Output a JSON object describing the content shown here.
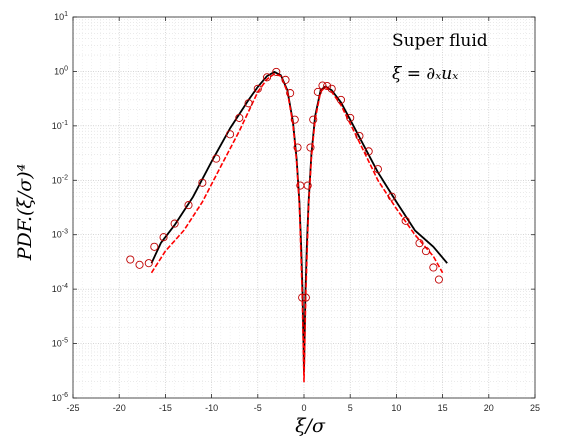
{
  "chart_data": {
    "type": "line",
    "xlabel": "ξ/σ",
    "ylabel": "PDF.(ξ/σ)⁴",
    "xlim": [
      -25,
      25
    ],
    "ylim": [
      1e-06,
      10
    ],
    "yscale": "log",
    "grid": true,
    "grid_minor": true,
    "x_ticks": [
      -25,
      -20,
      -15,
      -10,
      -5,
      0,
      5,
      10,
      15,
      20,
      25
    ],
    "x_tick_labels": [
      "-25",
      "-20",
      "-15",
      "-10",
      "-5",
      "0",
      "5",
      "10",
      "15",
      "20",
      "25"
    ],
    "y_ticks": [
      1e-06,
      1e-05,
      0.0001,
      0.001,
      0.01,
      0.1,
      1,
      10
    ],
    "y_tick_labels": [
      {
        "base": "10",
        "exp": "-6"
      },
      {
        "base": "10",
        "exp": "-5"
      },
      {
        "base": "10",
        "exp": "-4"
      },
      {
        "base": "10",
        "exp": "-3"
      },
      {
        "base": "10",
        "exp": "-2"
      },
      {
        "base": "10",
        "exp": "-1"
      },
      {
        "base": "10",
        "exp": "0"
      },
      {
        "base": "10",
        "exp": "1"
      }
    ],
    "annotations": [
      "Super  fluid",
      "ξ = ∂ₓuₓ"
    ],
    "series": [
      {
        "style": "line",
        "color": "#000000",
        "x": [
          -16.5,
          -15.5,
          -14,
          -12,
          -10,
          -8,
          -6,
          -5,
          -4,
          -3.2,
          -2.5,
          -1.8,
          -1.2,
          -0.8,
          -0.5,
          -0.3,
          -0.15,
          0,
          0.15,
          0.3,
          0.5,
          0.8,
          1.2,
          1.8,
          2.3,
          3,
          4,
          5,
          6,
          8,
          10,
          12,
          14,
          15.5
        ],
        "y": [
          0.0003,
          0.0007,
          0.0015,
          0.005,
          0.022,
          0.09,
          0.3,
          0.52,
          0.82,
          0.98,
          0.85,
          0.45,
          0.12,
          0.025,
          0.004,
          0.0006,
          8e-05,
          3e-06,
          8e-05,
          0.0006,
          0.004,
          0.03,
          0.15,
          0.45,
          0.53,
          0.45,
          0.27,
          0.13,
          0.062,
          0.014,
          0.004,
          0.0012,
          0.0006,
          0.0003
        ]
      },
      {
        "style": "dashed",
        "color": "#ff0000",
        "x": [
          -16.5,
          -15,
          -13,
          -11,
          -9,
          -7,
          -5,
          -4,
          -3.2,
          -2.5,
          -1.8,
          -1.2,
          -0.8,
          -0.5,
          -0.2,
          0,
          0.2,
          0.5,
          0.8,
          1.2,
          1.8,
          2.3,
          3,
          4,
          6,
          8,
          10,
          12,
          14,
          15
        ],
        "y": [
          0.0002,
          0.0005,
          0.0012,
          0.004,
          0.018,
          0.08,
          0.42,
          0.72,
          0.9,
          0.82,
          0.42,
          0.11,
          0.022,
          0.0035,
          8e-05,
          2e-06,
          8e-05,
          0.0035,
          0.026,
          0.13,
          0.42,
          0.52,
          0.42,
          0.24,
          0.05,
          0.01,
          0.003,
          0.001,
          0.0004,
          0.0002
        ]
      },
      {
        "style": "circles",
        "color": "#c00000",
        "x": [
          -18.8,
          -17.8,
          -16.8,
          -16.2,
          -15.2,
          -14,
          -12.5,
          -11,
          -9.5,
          -8,
          -7,
          -6,
          -5,
          -4,
          -3,
          -2,
          -1.5,
          -1,
          -0.7,
          -0.4,
          -0.2,
          0.2,
          0.4,
          0.7,
          1,
          1.5,
          2,
          2.5,
          3,
          4,
          5,
          6,
          7,
          8,
          9.5,
          11,
          12.5,
          13.2,
          14,
          14.6
        ],
        "y": [
          0.00035,
          0.00028,
          0.0003,
          0.0006,
          0.0009,
          0.0016,
          0.0035,
          0.009,
          0.025,
          0.07,
          0.14,
          0.26,
          0.48,
          0.78,
          0.98,
          0.7,
          0.4,
          0.13,
          0.04,
          0.008,
          7e-05,
          7e-05,
          0.008,
          0.04,
          0.13,
          0.42,
          0.55,
          0.54,
          0.48,
          0.3,
          0.14,
          0.065,
          0.034,
          0.016,
          0.005,
          0.0018,
          0.0007,
          0.0005,
          0.00025,
          0.00015
        ]
      }
    ]
  }
}
